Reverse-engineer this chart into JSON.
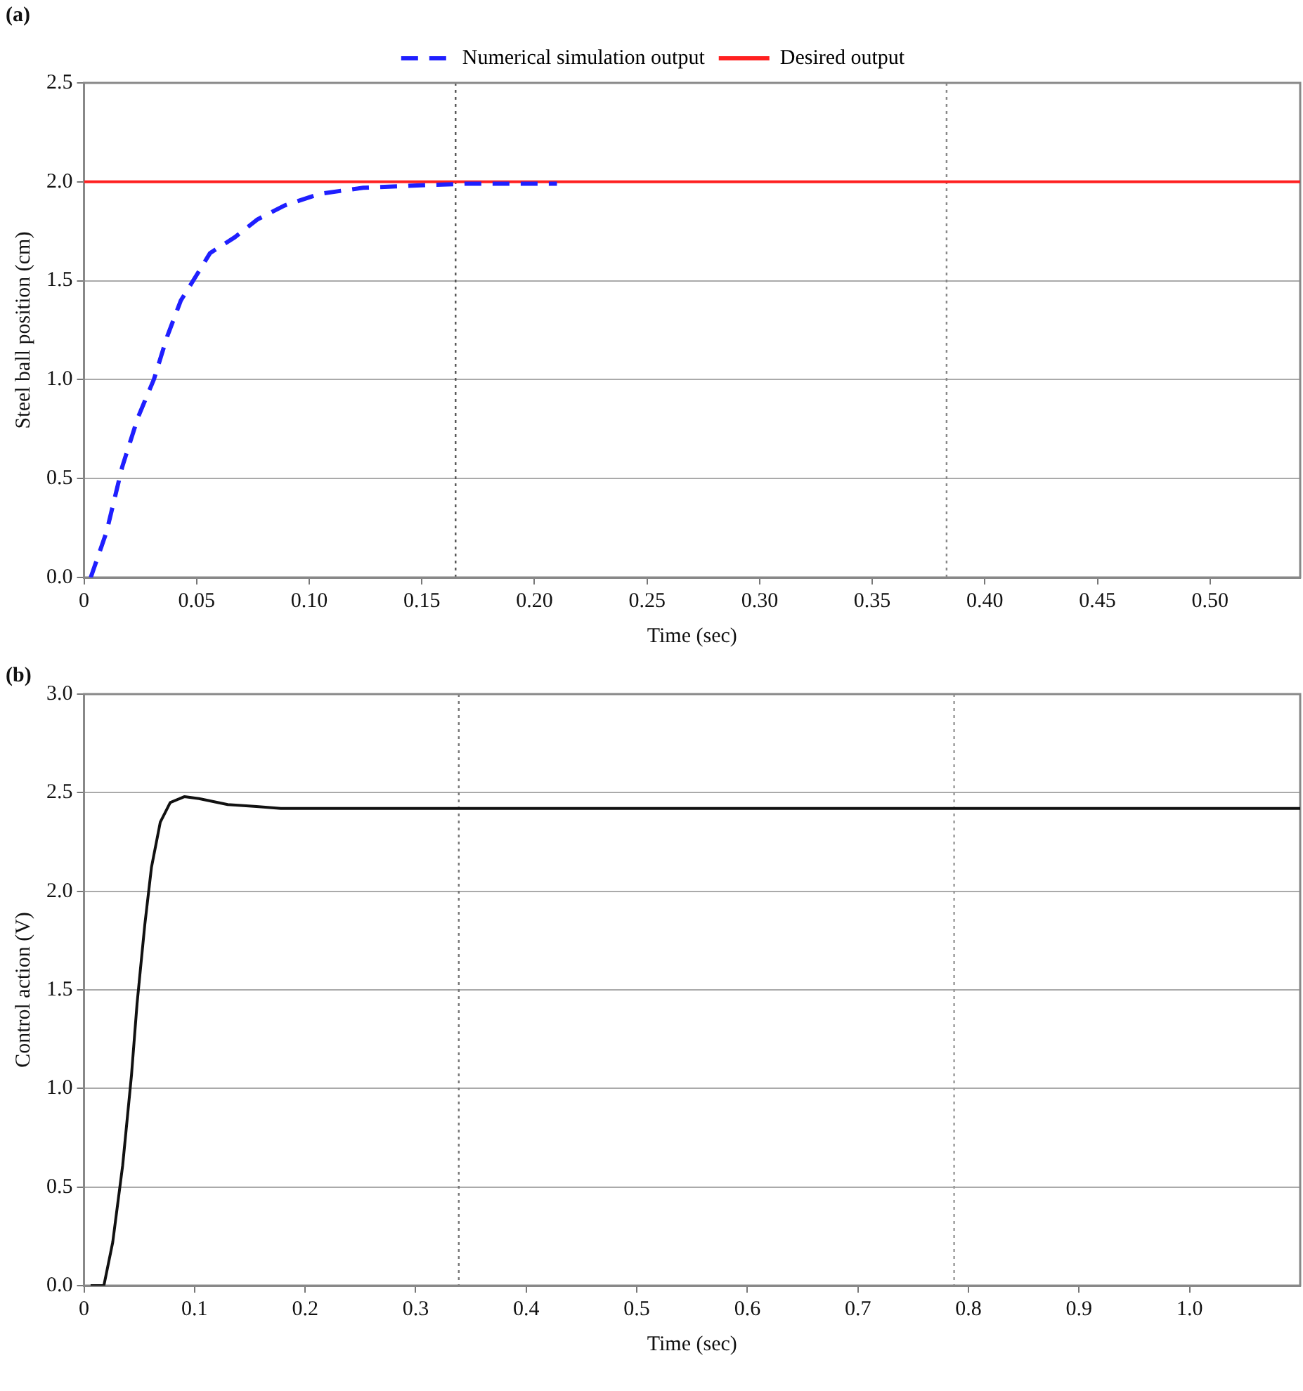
{
  "chart_data": [
    {
      "type": "line",
      "title": "(a)",
      "xlabel": "Time (sec)",
      "ylabel": "Steel ball position (cm)",
      "xlim": [
        0,
        0.54
      ],
      "ylim": [
        0,
        2.5
      ],
      "xticks": [
        0,
        0.05,
        {
          "value": 0.1,
          "label": "0.10"
        },
        0.15,
        {
          "value": 0.2,
          "label": "0.20"
        },
        0.25,
        {
          "value": 0.3,
          "label": "0.30"
        },
        0.35,
        {
          "value": 0.4,
          "label": "0.40"
        },
        0.45,
        {
          "value": 0.5,
          "label": "0.50"
        }
      ],
      "yticks": [
        {
          "value": 0,
          "label": "0.0"
        },
        0.5,
        {
          "value": 1,
          "label": "1.0"
        },
        1.5,
        {
          "value": 2,
          "label": "2.0"
        },
        2.5
      ],
      "grid": "y",
      "legend": "top",
      "marker": "none",
      "ref_lines": [
        {
          "axis": "x",
          "value": 0.165,
          "color": "#555555",
          "line_style": "dotted"
        },
        {
          "axis": "x",
          "value": 0.383,
          "color": "#888888",
          "line_style": "dotted"
        }
      ],
      "series": [
        {
          "name": "Numerical simulation output",
          "color": "#1f1fff",
          "line_style": "dashed",
          "x": [
            0.003,
            0.01,
            0.017,
            0.024,
            0.031,
            0.037,
            0.043,
            0.049,
            0.056,
            0.067,
            0.077,
            0.089,
            0.105,
            0.124,
            0.144,
            0.169,
            0.21
          ],
          "values": [
            0,
            0.23,
            0.56,
            0.81,
            1.0,
            1.22,
            1.4,
            1.51,
            1.64,
            1.72,
            1.81,
            1.88,
            1.94,
            1.97,
            1.98,
            1.99,
            1.99
          ]
        },
        {
          "name": "Desired output",
          "color": "#ff2020",
          "line_style": "solid",
          "x": [
            0,
            0.54
          ],
          "values": [
            2,
            2
          ]
        }
      ]
    },
    {
      "type": "line",
      "title": "(b)",
      "xlabel": "Time (sec)",
      "ylabel": "Control action (V)",
      "xlim": [
        0,
        1.1
      ],
      "ylim": [
        0,
        3
      ],
      "xticks": [
        0,
        0.1,
        0.2,
        0.3,
        0.4,
        0.5,
        0.6,
        0.7,
        0.8,
        0.9,
        {
          "value": 1,
          "label": "1.0"
        }
      ],
      "yticks": [
        {
          "value": 0,
          "label": "0.0"
        },
        0.5,
        {
          "value": 1,
          "label": "1.0"
        },
        1.5,
        {
          "value": 2,
          "label": "2.0"
        },
        2.5,
        {
          "value": 3,
          "label": "3.0"
        }
      ],
      "grid": "y",
      "marker": "none",
      "ref_lines": [
        {
          "axis": "x",
          "value": 0.339,
          "color": "#777777",
          "line_style": "dotted"
        },
        {
          "axis": "x",
          "value": 0.787,
          "color": "#999999",
          "line_style": "dotted"
        }
      ],
      "series": [
        {
          "color": "#111111",
          "line_style": "solid",
          "x": [
            0.006,
            0.018,
            0.026,
            0.035,
            0.043,
            0.048,
            0.055,
            0.061,
            0.069,
            0.078,
            0.091,
            0.104,
            0.13,
            0.156,
            0.178,
            1.1
          ],
          "values": [
            0,
            0,
            0.22,
            0.61,
            1.07,
            1.43,
            1.83,
            2.12,
            2.35,
            2.45,
            2.48,
            2.47,
            2.44,
            2.43,
            2.42,
            2.42
          ]
        }
      ]
    }
  ]
}
